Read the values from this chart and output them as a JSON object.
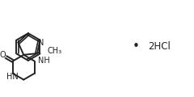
{
  "background_color": "#ffffff",
  "line_color": "#222222",
  "line_width": 1.4,
  "text_color": "#222222",
  "dot_text": "•",
  "salt_text": "2HCl",
  "font_size_atoms": 7.0,
  "font_size_salt": 8.5,
  "font_size_dot": 11
}
